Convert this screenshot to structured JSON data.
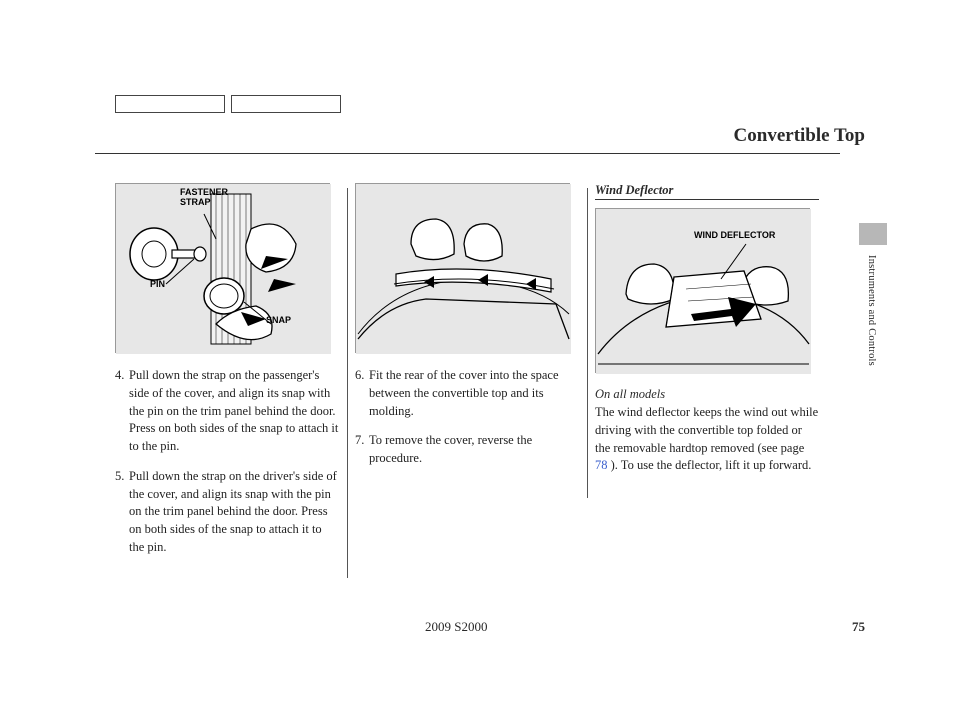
{
  "page": {
    "title": "Convertible Top",
    "model_footer": "2009  S2000",
    "page_number": "75",
    "side_section": "Instruments and Controls"
  },
  "column1": {
    "figure": {
      "labels": {
        "fastener_strap": "FASTENER\nSTRAP",
        "pin": "PIN",
        "snap": "SNAP"
      },
      "bg": "#e7e7e7"
    },
    "steps": [
      {
        "num": "4.",
        "text": "Pull down the strap on the passenger's side of the cover, and align its snap with the pin on the trim panel behind the door. Press on both sides of the snap to attach it to the pin."
      },
      {
        "num": "5.",
        "text": "Pull down the strap on the driver's side of the cover, and align its snap with the pin on the trim panel behind the door. Press on both sides of the snap to attach it to the pin."
      }
    ]
  },
  "column2": {
    "figure": {
      "bg": "#e7e7e7"
    },
    "steps": [
      {
        "num": "6.",
        "text": "Fit the rear of the cover into the space between the convertible top and its molding."
      },
      {
        "num": "7.",
        "text": "To remove the cover, reverse the procedure."
      }
    ]
  },
  "column3": {
    "heading": "Wind Deflector",
    "figure": {
      "labels": {
        "wind_deflector": "WIND DEFLECTOR"
      },
      "bg": "#e7e7e7"
    },
    "note": "On all models",
    "body_pre": "The wind deflector keeps the wind out while driving with the convertible top folded or the removable hardtop removed (see page  ",
    "page_ref": "78",
    "body_post": "  ). To use the deflector, lift it up forward."
  },
  "colors": {
    "text": "#222222",
    "rule": "#333333",
    "figure_bg": "#e7e7e7",
    "link": "#3a5fcd",
    "side_tab": "#b7b7b7"
  }
}
